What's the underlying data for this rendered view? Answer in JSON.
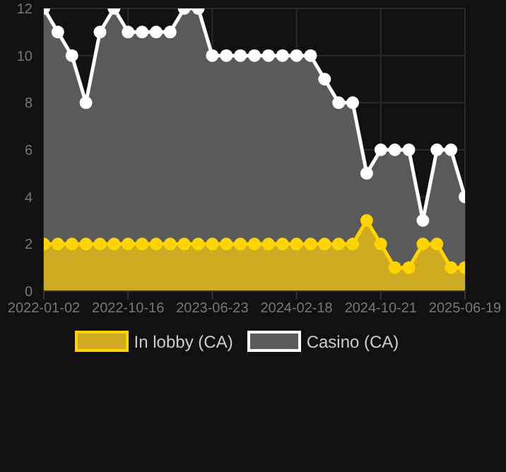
{
  "chart_data": {
    "type": "area",
    "categories": [
      "2022-01-02",
      null,
      null,
      null,
      null,
      null,
      "2022-10-16",
      null,
      null,
      null,
      null,
      null,
      "2023-06-23",
      null,
      null,
      null,
      null,
      null,
      "2024-02-18",
      null,
      null,
      null,
      null,
      null,
      "2024-10-21",
      null,
      null,
      null,
      null,
      null,
      "2025-06-19"
    ],
    "series": [
      {
        "name": "In lobby (CA)",
        "color": "#ffd400",
        "values": [
          2,
          2,
          2,
          2,
          2,
          2,
          2,
          2,
          2,
          2,
          2,
          2,
          2,
          2,
          2,
          2,
          2,
          2,
          2,
          2,
          2,
          2,
          2,
          3,
          2,
          1,
          1,
          2,
          2,
          1,
          1
        ]
      },
      {
        "name": "Casino (CA)",
        "color": "#ffffff",
        "values": [
          12,
          11,
          10,
          8,
          11,
          12,
          11,
          11,
          11,
          11,
          12,
          12,
          10,
          10,
          10,
          10,
          10,
          10,
          10,
          10,
          9,
          8,
          8,
          5,
          6,
          6,
          6,
          3,
          6,
          6,
          4
        ]
      }
    ],
    "ylim": [
      0,
      12
    ],
    "yticks": [
      0,
      2,
      4,
      6,
      8,
      10,
      12
    ],
    "grid": true,
    "legend": "bottom",
    "marker": "circle"
  }
}
